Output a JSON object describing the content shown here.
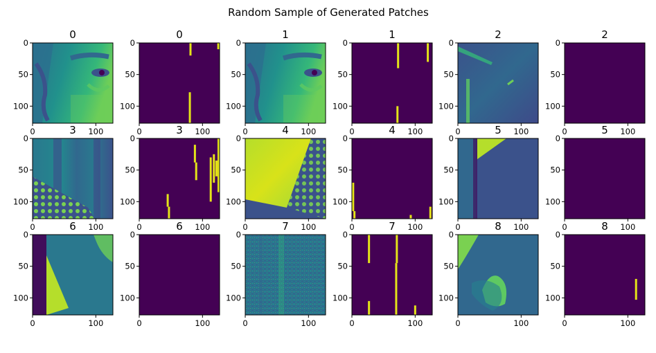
{
  "figure": {
    "title": "Random Sample of Generated Patches"
  },
  "colors": {
    "background": "#440154",
    "bright": "#e4e419",
    "axis": "#000000"
  },
  "chart_data": {
    "type": "image-grid",
    "title": "Random Sample of Generated Patches",
    "rows": 3,
    "cols": 6,
    "patch_size": 128,
    "xticks": [
      0,
      100
    ],
    "yticks": [
      0,
      50,
      100
    ],
    "xlim": [
      0,
      127
    ],
    "ylim": [
      127,
      0
    ],
    "panels": [
      {
        "title": "0",
        "kind": "image",
        "scene": "face",
        "mask_lines": []
      },
      {
        "title": "0",
        "kind": "mask",
        "scene": "",
        "mask_lines": [
          {
            "x": 81,
            "y0": 0,
            "y1": 20
          },
          {
            "x": 125,
            "y0": 0,
            "y1": 10
          },
          {
            "x": 80,
            "y0": 78,
            "y1": 127
          }
        ]
      },
      {
        "title": "1",
        "kind": "image",
        "scene": "face",
        "mask_lines": []
      },
      {
        "title": "1",
        "kind": "mask",
        "scene": "",
        "mask_lines": [
          {
            "x": 73,
            "y0": 0,
            "y1": 40
          },
          {
            "x": 120,
            "y0": 0,
            "y1": 30
          },
          {
            "x": 72,
            "y0": 100,
            "y1": 127
          }
        ]
      },
      {
        "title": "2",
        "kind": "image",
        "scene": "texture-streak",
        "mask_lines": []
      },
      {
        "title": "2",
        "kind": "mask",
        "scene": "",
        "mask_lines": []
      },
      {
        "title": "3",
        "kind": "image",
        "scene": "cloth-stripes",
        "mask_lines": []
      },
      {
        "title": "3",
        "kind": "mask",
        "scene": "",
        "mask_lines": [
          {
            "x": 88,
            "y0": 10,
            "y1": 38
          },
          {
            "x": 90,
            "y0": 38,
            "y1": 66
          },
          {
            "x": 113,
            "y0": 30,
            "y1": 100
          },
          {
            "x": 118,
            "y0": 25,
            "y1": 70
          },
          {
            "x": 122,
            "y0": 35,
            "y1": 60
          },
          {
            "x": 127,
            "y0": 0,
            "y1": 85
          },
          {
            "x": 45,
            "y0": 88,
            "y1": 108
          },
          {
            "x": 47,
            "y0": 108,
            "y1": 127
          }
        ]
      },
      {
        "title": "4",
        "kind": "image",
        "scene": "bright-plane",
        "mask_lines": []
      },
      {
        "title": "4",
        "kind": "mask",
        "scene": "",
        "mask_lines": [
          {
            "x": 2,
            "y0": 70,
            "y1": 115
          },
          {
            "x": 4,
            "y0": 115,
            "y1": 127
          },
          {
            "x": 93,
            "y0": 121,
            "y1": 127
          },
          {
            "x": 124,
            "y0": 108,
            "y1": 127
          }
        ]
      },
      {
        "title": "5",
        "kind": "image",
        "scene": "dark-edge",
        "mask_lines": []
      },
      {
        "title": "5",
        "kind": "mask",
        "scene": "",
        "mask_lines": []
      },
      {
        "title": "6",
        "kind": "image",
        "scene": "bright-triangle",
        "mask_lines": []
      },
      {
        "title": "6",
        "kind": "mask",
        "scene": "",
        "mask_lines": []
      },
      {
        "title": "7",
        "kind": "image",
        "scene": "noise",
        "mask_lines": []
      },
      {
        "title": "7",
        "kind": "mask",
        "scene": "",
        "mask_lines": [
          {
            "x": 27,
            "y0": 0,
            "y1": 45
          },
          {
            "x": 27,
            "y0": 105,
            "y1": 127
          },
          {
            "x": 71,
            "y0": 0,
            "y1": 45
          },
          {
            "x": 70,
            "y0": 45,
            "y1": 127
          },
          {
            "x": 100,
            "y0": 112,
            "y1": 127
          }
        ]
      },
      {
        "title": "8",
        "kind": "image",
        "scene": "hand",
        "mask_lines": []
      },
      {
        "title": "8",
        "kind": "mask",
        "scene": "",
        "mask_lines": [
          {
            "x": 113,
            "y0": 70,
            "y1": 103
          }
        ]
      }
    ]
  }
}
